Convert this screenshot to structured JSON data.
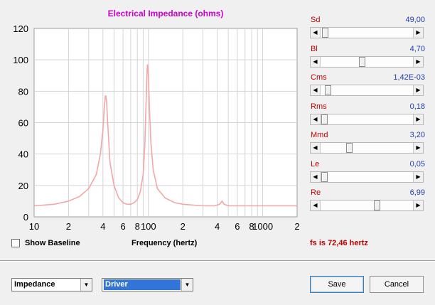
{
  "chart_data": {
    "type": "line",
    "title": "Electrical Impedance (ohms)",
    "xlabel": "Frequency (hertz)",
    "ylabel": "",
    "xscale": "log",
    "xlim": [
      10,
      2000
    ],
    "ylim": [
      0,
      120
    ],
    "yticks": [
      0,
      20,
      40,
      60,
      80,
      100,
      120
    ],
    "xtick_labels": [
      "10",
      "2",
      "4",
      "6",
      "8",
      "100",
      "2",
      "4",
      "6",
      "8",
      "1000",
      "2"
    ],
    "grid": true,
    "series": [
      {
        "color": "#f2a7a7",
        "x": [
          10,
          15,
          20,
          25,
          30,
          35,
          38,
          40,
          41,
          42,
          42.5,
          43,
          44,
          46,
          50,
          55,
          60,
          65,
          70,
          75,
          80,
          85,
          90,
          93,
          95,
          97,
          98,
          99,
          100,
          102,
          105,
          110,
          120,
          140,
          170,
          200,
          300,
          380,
          420,
          440,
          460,
          500,
          700,
          1000,
          1500,
          2000
        ],
        "y": [
          7,
          8,
          10,
          13,
          18,
          27,
          40,
          55,
          68,
          77,
          77,
          74,
          60,
          35,
          20,
          12,
          9,
          8,
          8,
          9,
          11,
          16,
          27,
          45,
          68,
          90,
          97,
          96,
          90,
          70,
          48,
          30,
          18,
          12,
          9,
          8,
          7,
          7,
          8,
          10,
          8,
          7,
          7,
          7,
          7,
          7
        ]
      }
    ]
  },
  "params": [
    {
      "label": "Sd",
      "value": "49,00",
      "position": 0.02
    },
    {
      "label": "Bl",
      "value": "4,70",
      "position": 0.45
    },
    {
      "label": "Cms",
      "value": "1,42E-03",
      "position": 0.05
    },
    {
      "label": "Rms",
      "value": "0,18",
      "position": 0.01
    },
    {
      "label": "Mmd",
      "value": "3,20",
      "position": 0.3
    },
    {
      "label": "Le",
      "value": "0,05",
      "position": 0.01
    },
    {
      "label": "Re",
      "value": "6,99",
      "position": 0.62
    }
  ],
  "controls": {
    "show_baseline_label": "Show Baseline",
    "show_baseline_checked": false,
    "frequency_label": "Frequency (hertz)",
    "fs_text": "fs is 72,46 hertz"
  },
  "footer": {
    "plot_select": "Impedance",
    "source_select": "Driver",
    "save_label": "Save",
    "cancel_label": "Cancel"
  },
  "icons": {
    "left_arrow": "◀",
    "right_arrow": "▶",
    "dropdown": "▼"
  }
}
